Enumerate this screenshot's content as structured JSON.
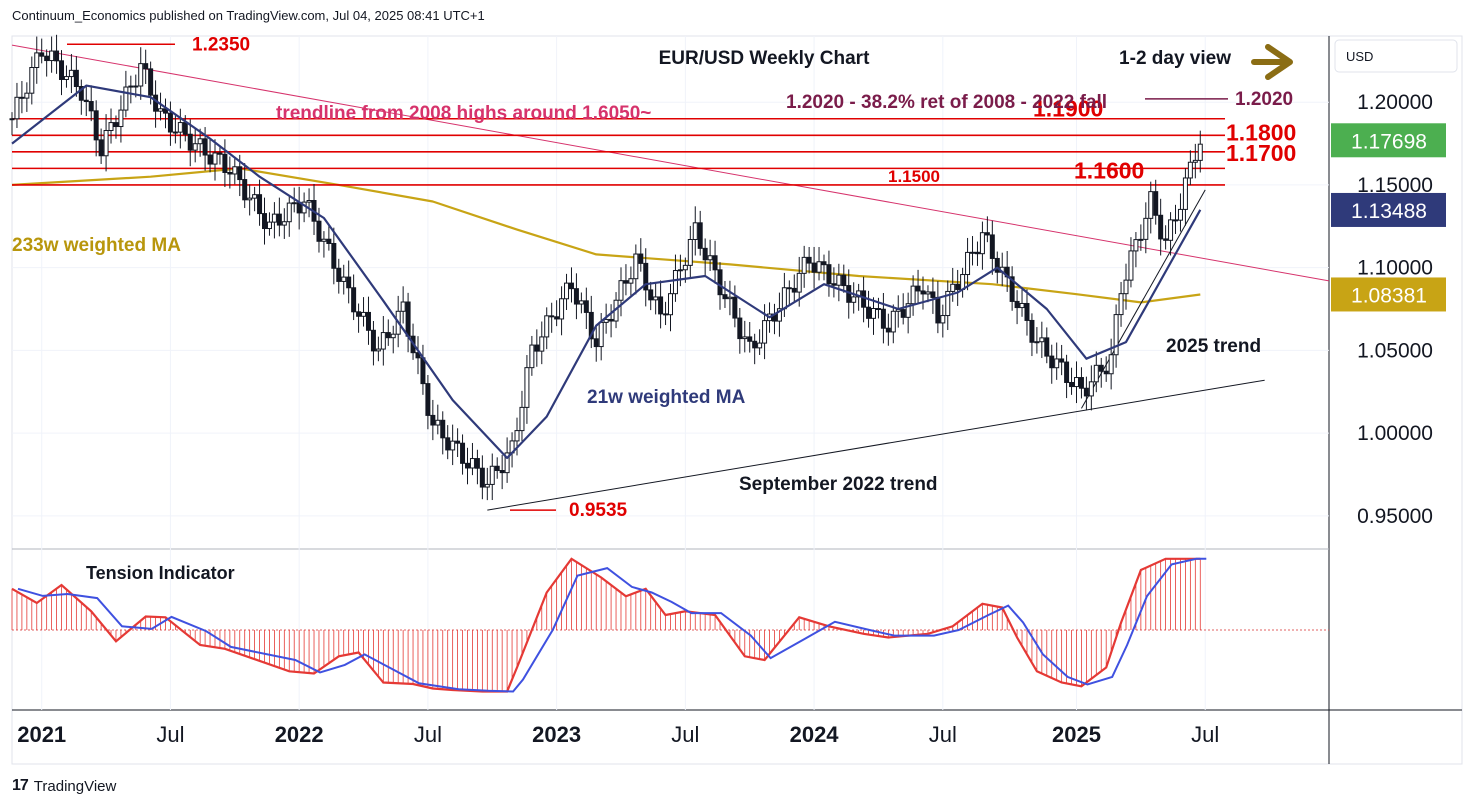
{
  "header": {
    "publisher_line": "Continuum_Economics published on TradingView.com, Jul 04, 2025 08:41 UTC+1"
  },
  "footer": {
    "logo_text": "TradingView"
  },
  "chart_data": {
    "type": "candlestick",
    "title": "EUR/USD Weekly Chart",
    "view_label": "1-2 day view",
    "view_direction": "right",
    "currency_label": "USD",
    "y_axis": {
      "range": [
        0.93,
        1.24
      ],
      "ticks": [
        "0.95000",
        "1.00000",
        "1.05000",
        "1.10000",
        "1.15000",
        "1.20000"
      ],
      "tick_values": [
        0.95,
        1.0,
        1.05,
        1.1,
        1.15,
        1.2
      ]
    },
    "x_axis": {
      "range": [
        "2020-11-23",
        "2025-12-29"
      ],
      "ticks": [
        {
          "label": "2021",
          "date": "2021-01-04",
          "bold": true
        },
        {
          "label": "Jul",
          "date": "2021-07-05",
          "bold": false
        },
        {
          "label": "2022",
          "date": "2022-01-03",
          "bold": true
        },
        {
          "label": "Jul",
          "date": "2022-07-04",
          "bold": false
        },
        {
          "label": "2023",
          "date": "2023-01-02",
          "bold": true
        },
        {
          "label": "Jul",
          "date": "2023-07-03",
          "bold": false
        },
        {
          "label": "2024",
          "date": "2024-01-01",
          "bold": true
        },
        {
          "label": "Jul",
          "date": "2024-07-01",
          "bold": false
        },
        {
          "label": "2025",
          "date": "2025-01-06",
          "bold": true
        },
        {
          "label": "Jul",
          "date": "2025-07-07",
          "bold": false
        }
      ]
    },
    "price_badges": [
      {
        "value": 1.17698,
        "label": "1.17698",
        "color": "#4caf50",
        "series": "price"
      },
      {
        "value": 1.13488,
        "label": "1.13488",
        "color": "#2f3a7a",
        "series": "21w weighted MA"
      },
      {
        "value": 1.08381,
        "label": "1.08381",
        "color": "#c8a415",
        "series": "233w weighted MA"
      }
    ],
    "series": [
      {
        "name": "EUR/USD",
        "kind": "close_path",
        "points": [
          [
            "2020-11-23",
            1.19
          ],
          [
            "2021-01-04",
            1.232
          ],
          [
            "2021-03-01",
            1.207
          ],
          [
            "2021-03-29",
            1.172
          ],
          [
            "2021-05-24",
            1.222
          ],
          [
            "2021-06-21",
            1.192
          ],
          [
            "2021-08-16",
            1.172
          ],
          [
            "2021-09-27",
            1.16
          ],
          [
            "2021-11-22",
            1.125
          ],
          [
            "2022-01-10",
            1.141
          ],
          [
            "2022-03-07",
            1.09
          ],
          [
            "2022-04-25",
            1.05
          ],
          [
            "2022-05-30",
            1.075
          ],
          [
            "2022-07-11",
            1.005
          ],
          [
            "2022-09-26",
            0.97
          ],
          [
            "2022-10-31",
            0.99
          ],
          [
            "2022-11-28",
            1.05
          ],
          [
            "2023-01-23",
            1.09
          ],
          [
            "2023-02-27",
            1.055
          ],
          [
            "2023-04-24",
            1.105
          ],
          [
            "2023-05-29",
            1.07
          ],
          [
            "2023-07-17",
            1.122
          ],
          [
            "2023-10-02",
            1.05
          ],
          [
            "2023-12-25",
            1.105
          ],
          [
            "2024-04-15",
            1.065
          ],
          [
            "2024-06-03",
            1.09
          ],
          [
            "2024-06-24",
            1.07
          ],
          [
            "2024-08-26",
            1.12
          ],
          [
            "2024-11-11",
            1.055
          ],
          [
            "2025-01-13",
            1.025
          ],
          [
            "2025-02-24",
            1.045
          ],
          [
            "2025-03-10",
            1.088
          ],
          [
            "2025-04-21",
            1.14
          ],
          [
            "2025-05-12",
            1.115
          ],
          [
            "2025-06-02",
            1.14
          ],
          [
            "2025-06-23",
            1.17
          ],
          [
            "2025-06-30",
            1.177
          ]
        ]
      },
      {
        "name": "21w weighted MA",
        "kind": "line",
        "color": "#2f3a7a",
        "points": [
          [
            "2020-11-23",
            1.175
          ],
          [
            "2021-03-08",
            1.21
          ],
          [
            "2021-06-07",
            1.203
          ],
          [
            "2021-08-30",
            1.178
          ],
          [
            "2021-11-08",
            1.155
          ],
          [
            "2022-02-07",
            1.13
          ],
          [
            "2022-05-02",
            1.08
          ],
          [
            "2022-08-08",
            1.02
          ],
          [
            "2022-10-24",
            0.985
          ],
          [
            "2022-12-19",
            1.01
          ],
          [
            "2023-02-27",
            1.065
          ],
          [
            "2023-05-08",
            1.09
          ],
          [
            "2023-07-31",
            1.095
          ],
          [
            "2023-10-30",
            1.07
          ],
          [
            "2024-01-15",
            1.09
          ],
          [
            "2024-04-29",
            1.075
          ],
          [
            "2024-07-22",
            1.085
          ],
          [
            "2024-09-16",
            1.1
          ],
          [
            "2024-11-25",
            1.075
          ],
          [
            "2025-01-20",
            1.045
          ],
          [
            "2025-03-17",
            1.055
          ],
          [
            "2025-06-30",
            1.135
          ]
        ]
      },
      {
        "name": "233w weighted MA",
        "kind": "line",
        "color": "#c8a415",
        "points": [
          [
            "2020-11-23",
            1.15
          ],
          [
            "2021-06-07",
            1.155
          ],
          [
            "2021-10-11",
            1.16
          ],
          [
            "2022-02-28",
            1.15
          ],
          [
            "2022-07-11",
            1.14
          ],
          [
            "2022-11-07",
            1.123
          ],
          [
            "2023-02-27",
            1.108
          ],
          [
            "2023-09-04",
            1.102
          ],
          [
            "2024-03-04",
            1.095
          ],
          [
            "2024-09-09",
            1.09
          ],
          [
            "2025-01-06",
            1.084
          ],
          [
            "2025-04-07",
            1.079
          ],
          [
            "2025-06-30",
            1.0838
          ]
        ]
      }
    ],
    "levels": [
      {
        "value": 1.19,
        "label": "1.1900",
        "color": "#e00000",
        "size": "large"
      },
      {
        "value": 1.18,
        "label": "1.1800",
        "color": "#e00000",
        "size": "large"
      },
      {
        "value": 1.17,
        "label": "1.1700",
        "color": "#e00000",
        "size": "large"
      },
      {
        "value": 1.16,
        "label": "1.1600",
        "color": "#e00000",
        "size": "large"
      },
      {
        "value": 1.15,
        "label": "1.1500",
        "color": "#e00000",
        "size": "small"
      }
    ],
    "annotations": [
      {
        "text": "1.2350",
        "value": 1.235,
        "color": "#e00000"
      },
      {
        "text": "0.9535",
        "value": 0.9535,
        "color": "#e00000"
      },
      {
        "text": "1.2020",
        "value": 1.202,
        "color": "#7a1c4a"
      },
      {
        "text": "1.2020 - 38.2% ret of 2008 - 2022 fall",
        "color": "#7a1c4a"
      },
      {
        "text": "trendline from 2008 highs around 1.6050~",
        "color": "#d6336c"
      },
      {
        "text": "233w weighted MA",
        "color": "#b8960c"
      },
      {
        "text": "21w weighted MA",
        "color": "#2f3a7a"
      },
      {
        "text": "September 2022 trend",
        "color": "#131722"
      },
      {
        "text": "2025 trend",
        "color": "#131722"
      }
    ],
    "trendlines": [
      {
        "name": "trendline from 2008 highs",
        "color": "#d6336c",
        "from": [
          "2020-11-23",
          1.2345
        ],
        "to": [
          "2025-12-29",
          1.092
        ]
      },
      {
        "name": "September 2022 trend",
        "color": "#131722",
        "from": [
          "2022-09-26",
          0.9535
        ],
        "to": [
          "2025-09-29",
          1.032
        ]
      },
      {
        "name": "2025 trend",
        "color": "#131722",
        "from": [
          "2025-01-13",
          1.015
        ],
        "to": [
          "2025-07-07",
          1.147
        ]
      }
    ],
    "tension_indicator": {
      "title": "Tension Indicator",
      "range": [
        -1,
        1
      ],
      "points": [
        [
          "2020-11-23",
          0.55
        ],
        [
          "2020-12-28",
          0.36
        ],
        [
          "2021-02-01",
          0.6
        ],
        [
          "2021-03-15",
          0.25
        ],
        [
          "2021-04-19",
          -0.15
        ],
        [
          "2021-05-31",
          0.18
        ],
        [
          "2021-06-28",
          0.17
        ],
        [
          "2021-08-16",
          -0.2
        ],
        [
          "2021-09-20",
          -0.25
        ],
        [
          "2021-12-20",
          -0.55
        ],
        [
          "2022-01-24",
          -0.58
        ],
        [
          "2022-02-28",
          -0.35
        ],
        [
          "2022-03-28",
          -0.3
        ],
        [
          "2022-05-02",
          -0.7
        ],
        [
          "2022-06-13",
          -0.72
        ],
        [
          "2022-07-11",
          -0.78
        ],
        [
          "2022-08-08",
          -0.8
        ],
        [
          "2022-09-19",
          -0.82
        ],
        [
          "2022-10-24",
          -0.82
        ],
        [
          "2022-11-07",
          -0.5
        ],
        [
          "2022-12-19",
          0.5
        ],
        [
          "2023-01-23",
          0.95
        ],
        [
          "2023-03-06",
          0.7
        ],
        [
          "2023-04-10",
          0.45
        ],
        [
          "2023-05-08",
          0.55
        ],
        [
          "2023-06-05",
          0.2
        ],
        [
          "2023-07-03",
          0.25
        ],
        [
          "2023-08-14",
          0.2
        ],
        [
          "2023-09-25",
          -0.35
        ],
        [
          "2023-10-23",
          -0.4
        ],
        [
          "2023-12-11",
          0.17
        ],
        [
          "2024-01-22",
          0.05
        ],
        [
          "2024-03-11",
          -0.05
        ],
        [
          "2024-04-15",
          -0.1
        ],
        [
          "2024-06-10",
          -0.05
        ],
        [
          "2024-07-15",
          0.05
        ],
        [
          "2024-08-26",
          0.35
        ],
        [
          "2024-09-23",
          0.3
        ],
        [
          "2024-10-14",
          -0.1
        ],
        [
          "2024-11-11",
          -0.55
        ],
        [
          "2024-12-16",
          -0.7
        ],
        [
          "2025-01-13",
          -0.75
        ],
        [
          "2025-02-17",
          -0.5
        ],
        [
          "2025-03-10",
          0.1
        ],
        [
          "2025-04-07",
          0.8
        ],
        [
          "2025-05-12",
          0.95
        ],
        [
          "2025-06-16",
          0.95
        ],
        [
          "2025-06-30",
          0.95
        ]
      ]
    }
  }
}
